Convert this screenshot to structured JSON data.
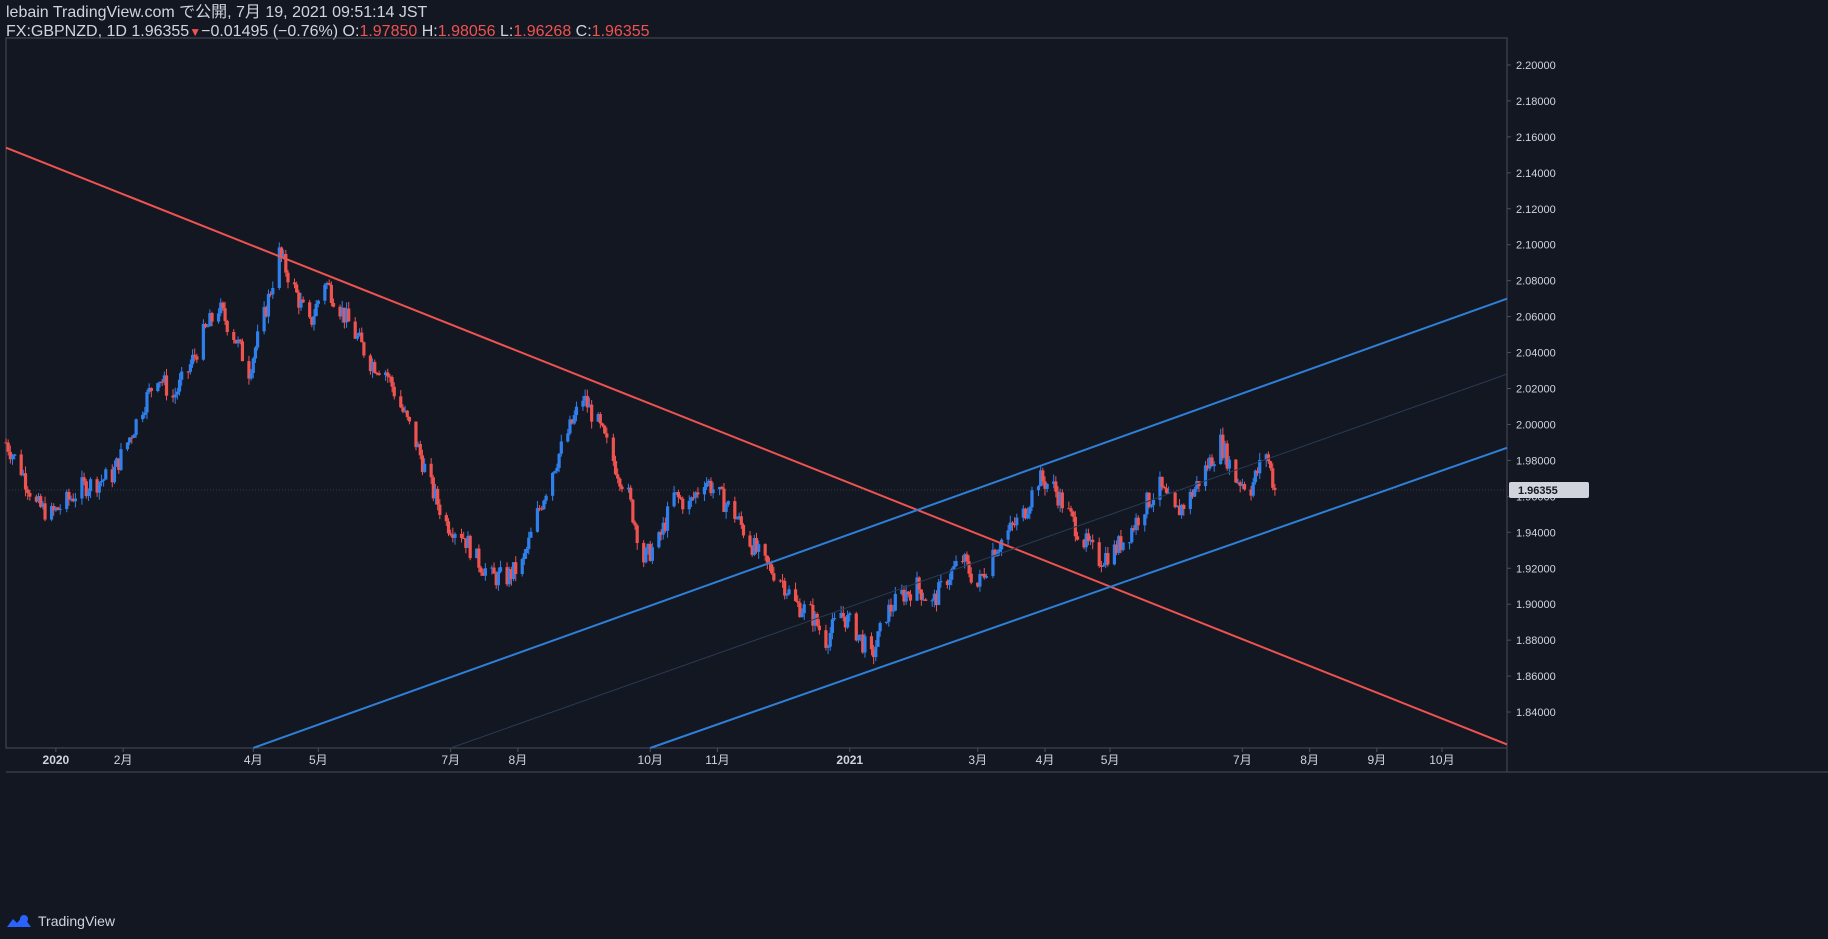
{
  "header": {
    "publisher": "lebain TradingView.com で公開, 7月 19, 2021 09:51:14 JST",
    "symbol": "FX:GBPNZD, 1D",
    "last": "1.96355",
    "arrow": "▼",
    "change": "−0.01495 (−0.76%)",
    "o_label": "O:",
    "o_value": "1.97850",
    "h_label": "H:",
    "h_value": "1.98056",
    "l_label": "L:",
    "l_value": "1.96268",
    "c_label": "C:",
    "c_value": "1.96355"
  },
  "footer": {
    "brand": "TradingView",
    "logo_icon": "tradingview-logo-icon"
  },
  "colors": {
    "background": "#131722",
    "up": "#2962ff",
    "up_light": "#2f80ed",
    "down": "#ef5350",
    "axis_text": "#d1d4dc",
    "axis_line": "#4a4e59",
    "trend_red": "#ef5350",
    "trend_blue": "#2f7fd8",
    "price_tag_bg": "#d1d4dc",
    "price_tag_text": "#131722"
  },
  "chart_data": {
    "type": "candlestick",
    "symbol": "FX:GBPNZD",
    "interval": "1D",
    "x_range": [
      "2019-12-09",
      "2021-10-31"
    ],
    "y_range": [
      1.82,
      2.215
    ],
    "grid": false,
    "y_ticks": [
      "2.20000",
      "2.18000",
      "2.16000",
      "2.14000",
      "2.12000",
      "2.10000",
      "2.08000",
      "2.06000",
      "2.04000",
      "2.02000",
      "2.00000",
      "1.98000",
      "1.96000",
      "1.94000",
      "1.92000",
      "1.90000",
      "1.88000",
      "1.86000",
      "1.84000"
    ],
    "x_ticks": [
      {
        "date": "2020-01-01",
        "label": "2020"
      },
      {
        "date": "2020-02-01",
        "label": "2月"
      },
      {
        "date": "2020-04-01",
        "label": "4月"
      },
      {
        "date": "2020-05-01",
        "label": "5月"
      },
      {
        "date": "2020-07-01",
        "label": "7月"
      },
      {
        "date": "2020-08-01",
        "label": "8月"
      },
      {
        "date": "2020-10-01",
        "label": "10月"
      },
      {
        "date": "2020-11-01",
        "label": "11月"
      },
      {
        "date": "2021-01-01",
        "label": "2021"
      },
      {
        "date": "2021-03-01",
        "label": "3月"
      },
      {
        "date": "2021-04-01",
        "label": "4月"
      },
      {
        "date": "2021-05-01",
        "label": "5月"
      },
      {
        "date": "2021-07-01",
        "label": "7月"
      },
      {
        "date": "2021-08-01",
        "label": "8月"
      },
      {
        "date": "2021-09-01",
        "label": "9月"
      },
      {
        "date": "2021-10-01",
        "label": "10月"
      }
    ],
    "last_price": {
      "value": 1.96355,
      "label": "1.96355"
    },
    "close_path": [
      [
        "2019-12-09",
        1.99
      ],
      [
        "2019-12-16",
        1.975
      ],
      [
        "2019-12-23",
        1.955
      ],
      [
        "2019-12-30",
        1.95
      ],
      [
        "2020-01-06",
        1.957
      ],
      [
        "2020-01-13",
        1.965
      ],
      [
        "2020-01-20",
        1.968
      ],
      [
        "2020-01-27",
        1.972
      ],
      [
        "2020-02-03",
        1.99
      ],
      [
        "2020-02-10",
        2.01
      ],
      [
        "2020-02-17",
        2.028
      ],
      [
        "2020-02-24",
        2.015
      ],
      [
        "2020-03-02",
        2.03
      ],
      [
        "2020-03-09",
        2.05
      ],
      [
        "2020-03-16",
        2.065
      ],
      [
        "2020-03-23",
        2.05
      ],
      [
        "2020-03-30",
        2.03
      ],
      [
        "2020-04-06",
        2.06
      ],
      [
        "2020-04-13",
        2.095
      ],
      [
        "2020-04-20",
        2.075
      ],
      [
        "2020-04-27",
        2.055
      ],
      [
        "2020-05-04",
        2.08
      ],
      [
        "2020-05-11",
        2.065
      ],
      [
        "2020-05-18",
        2.05
      ],
      [
        "2020-05-25",
        2.035
      ],
      [
        "2020-06-01",
        2.03
      ],
      [
        "2020-06-08",
        2.01
      ],
      [
        "2020-06-15",
        1.99
      ],
      [
        "2020-06-22",
        1.965
      ],
      [
        "2020-06-29",
        1.945
      ],
      [
        "2020-07-06",
        1.94
      ],
      [
        "2020-07-13",
        1.925
      ],
      [
        "2020-07-20",
        1.915
      ],
      [
        "2020-07-27",
        1.915
      ],
      [
        "2020-08-03",
        1.922
      ],
      [
        "2020-08-10",
        1.95
      ],
      [
        "2020-08-17",
        1.975
      ],
      [
        "2020-08-24",
        1.995
      ],
      [
        "2020-08-31",
        2.015
      ],
      [
        "2020-09-07",
        2.0
      ],
      [
        "2020-09-14",
        1.98
      ],
      [
        "2020-09-21",
        1.96
      ],
      [
        "2020-09-28",
        1.925
      ],
      [
        "2020-10-05",
        1.935
      ],
      [
        "2020-10-12",
        1.96
      ],
      [
        "2020-10-19",
        1.955
      ],
      [
        "2020-10-26",
        1.97
      ],
      [
        "2020-11-02",
        1.96
      ],
      [
        "2020-11-09",
        1.95
      ],
      [
        "2020-11-16",
        1.935
      ],
      [
        "2020-11-23",
        1.922
      ],
      [
        "2020-11-30",
        1.915
      ],
      [
        "2020-12-07",
        1.9
      ],
      [
        "2020-12-14",
        1.895
      ],
      [
        "2020-12-21",
        1.88
      ],
      [
        "2020-12-28",
        1.895
      ],
      [
        "2021-01-04",
        1.885
      ],
      [
        "2021-01-11",
        1.87
      ],
      [
        "2021-01-18",
        1.895
      ],
      [
        "2021-01-25",
        1.905
      ],
      [
        "2021-02-01",
        1.91
      ],
      [
        "2021-02-08",
        1.9
      ],
      [
        "2021-02-15",
        1.915
      ],
      [
        "2021-02-22",
        1.925
      ],
      [
        "2021-03-01",
        1.91
      ],
      [
        "2021-03-08",
        1.93
      ],
      [
        "2021-03-15",
        1.94
      ],
      [
        "2021-03-22",
        1.95
      ],
      [
        "2021-03-29",
        1.97
      ],
      [
        "2021-04-05",
        1.965
      ],
      [
        "2021-04-12",
        1.95
      ],
      [
        "2021-04-19",
        1.935
      ],
      [
        "2021-04-26",
        1.925
      ],
      [
        "2021-05-03",
        1.93
      ],
      [
        "2021-05-10",
        1.94
      ],
      [
        "2021-05-17",
        1.955
      ],
      [
        "2021-05-24",
        1.965
      ],
      [
        "2021-05-31",
        1.95
      ],
      [
        "2021-06-07",
        1.96
      ],
      [
        "2021-06-14",
        1.975
      ],
      [
        "2021-06-21",
        1.99
      ],
      [
        "2021-06-28",
        1.97
      ],
      [
        "2021-07-05",
        1.965
      ],
      [
        "2021-07-12",
        1.985
      ],
      [
        "2021-07-16",
        1.96355
      ]
    ],
    "trend_lines": [
      {
        "color": "red",
        "points": [
          [
            "2019-12-09",
            2.154
          ],
          [
            "2021-10-31",
            1.822
          ]
        ]
      },
      {
        "color": "blue",
        "points": [
          [
            "2020-04-01",
            1.82
          ],
          [
            "2021-10-31",
            2.07
          ]
        ]
      },
      {
        "color": "blue",
        "points": [
          [
            "2020-10-01",
            1.82
          ],
          [
            "2021-10-31",
            1.987
          ]
        ]
      },
      {
        "color": "faint",
        "points": [
          [
            "2020-07-01",
            1.82
          ],
          [
            "2021-10-31",
            2.028
          ]
        ]
      }
    ]
  }
}
